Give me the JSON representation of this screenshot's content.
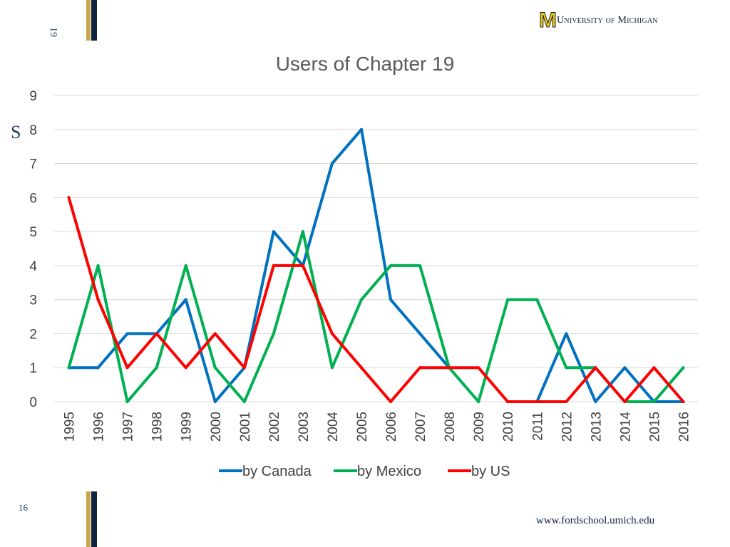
{
  "slide": {
    "corner_text": "19",
    "side_letter": "S",
    "logo_mark": "M",
    "logo_name": "University of Michigan",
    "page_number": "16",
    "website": "www.fordschool.umich.edu"
  },
  "colors": {
    "canada": "#0070c0",
    "mexico": "#00b050",
    "us": "#ff0000",
    "gridline": "#d9d9d9",
    "gold": "#c9a44f",
    "navy": "#0d2340"
  },
  "chart_data": {
    "type": "line",
    "title": "Users of Chapter 19",
    "xlabel": "",
    "ylabel": "",
    "ylim": [
      0,
      9
    ],
    "y_ticks": [
      0,
      1,
      2,
      3,
      4,
      5,
      6,
      7,
      8,
      9
    ],
    "grid": true,
    "legend_position": "bottom",
    "categories": [
      "1995",
      "1996",
      "1997",
      "1998",
      "1999",
      "2000",
      "2001",
      "2002",
      "2003",
      "2004",
      "2005",
      "2006",
      "2007",
      "2008",
      "2009",
      "2010",
      "2011",
      "2012",
      "2013",
      "2014",
      "2015",
      "2016"
    ],
    "series": [
      {
        "name": "by Canada",
        "color": "#0070c0",
        "values": [
          1,
          1,
          2,
          2,
          3,
          0,
          1,
          5,
          4,
          7,
          8,
          3,
          2,
          1,
          null,
          null,
          0,
          2,
          0,
          1,
          0,
          0
        ]
      },
      {
        "name": "by Mexico",
        "color": "#00b050",
        "values": [
          1,
          4,
          0,
          1,
          4,
          1,
          0,
          2,
          5,
          1,
          3,
          4,
          4,
          1,
          0,
          3,
          3,
          1,
          1,
          0,
          0,
          1
        ]
      },
      {
        "name": "by US",
        "color": "#ff0000",
        "values": [
          6,
          3,
          1,
          2,
          1,
          2,
          1,
          4,
          4,
          2,
          1,
          0,
          1,
          1,
          1,
          0,
          0,
          0,
          1,
          0,
          1,
          0
        ]
      }
    ]
  }
}
